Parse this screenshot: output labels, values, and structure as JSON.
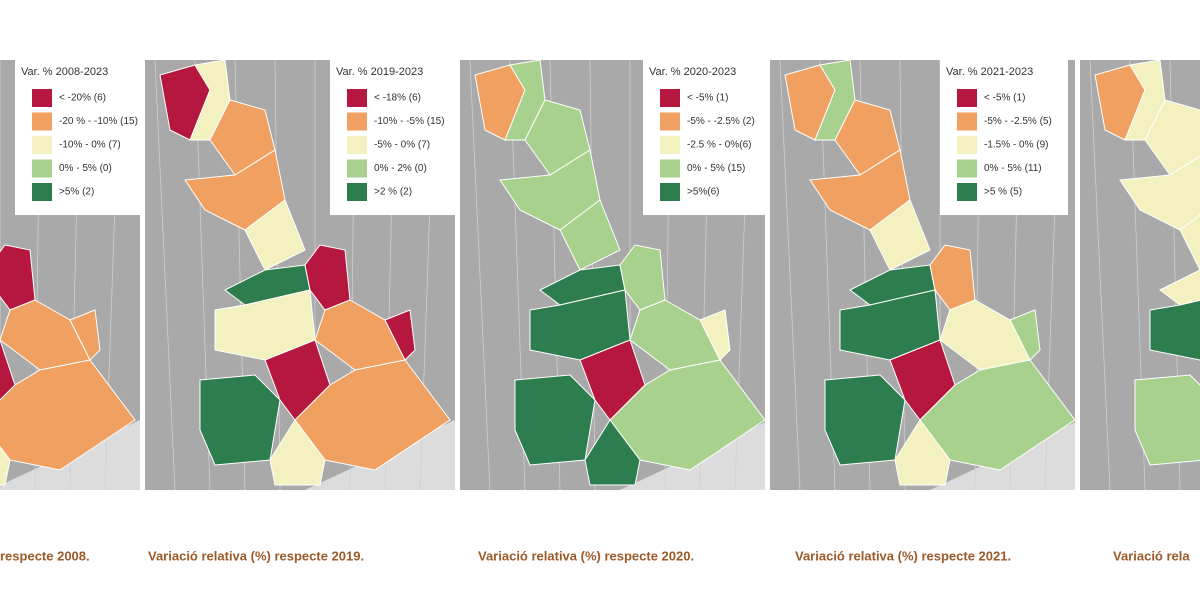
{
  "panels": [
    {
      "legend": {
        "title": "Var. % 2008-2023",
        "items": [
          {
            "label": "< -20% (6)",
            "color": "#b5173f"
          },
          {
            "label": "-20 % - -10% (15)",
            "color": "#f0a060"
          },
          {
            "label": "-10% - 0% (7)",
            "color": "#f4f1c0"
          },
          {
            "label": "0% - 5% (0)",
            "color": "#a9d18e"
          },
          {
            "label": ">5% (2)",
            "color": "#2e7d4f"
          }
        ]
      },
      "caption": "respecte 2008."
    },
    {
      "legend": {
        "title": "Var. % 2019-2023",
        "items": [
          {
            "label": "< -18% (6)",
            "color": "#b5173f"
          },
          {
            "label": "-10% - -5% (15)",
            "color": "#f0a060"
          },
          {
            "label": "-5% - 0% (7)",
            "color": "#f4f1c0"
          },
          {
            "label": "0% - 2% (0)",
            "color": "#a9d18e"
          },
          {
            "label": ">2 % (2)",
            "color": "#2e7d4f"
          }
        ]
      },
      "caption": "Variació relativa (%) respecte 2019."
    },
    {
      "legend": {
        "title": "Var. % 2020-2023",
        "items": [
          {
            "label": "< -5% (1)",
            "color": "#b5173f"
          },
          {
            "label": "-5% - -2.5% (2)",
            "color": "#f0a060"
          },
          {
            "label": "-2.5 % - 0%(6)",
            "color": "#f4f1c0"
          },
          {
            "label": "0% - 5% (15)",
            "color": "#a9d18e"
          },
          {
            "label": ">5%(6)",
            "color": "#2e7d4f"
          }
        ]
      },
      "caption": "Variació relativa (%) respecte 2020."
    },
    {
      "legend": {
        "title": "Var. % 2021-2023",
        "items": [
          {
            "label": "< -5% (1)",
            "color": "#b5173f"
          },
          {
            "label": "-5% - -2.5% (5)",
            "color": "#f0a060"
          },
          {
            "label": "-1.5% - 0% (9)",
            "color": "#f4f1c0"
          },
          {
            "label": "0% - 5% (11)",
            "color": "#a9d18e"
          },
          {
            "label": ">5 % (5)",
            "color": "#2e7d4f"
          }
        ]
      },
      "caption": "Variació relativa (%) respecte 2021."
    },
    {
      "caption": "Variació rela"
    }
  ]
}
